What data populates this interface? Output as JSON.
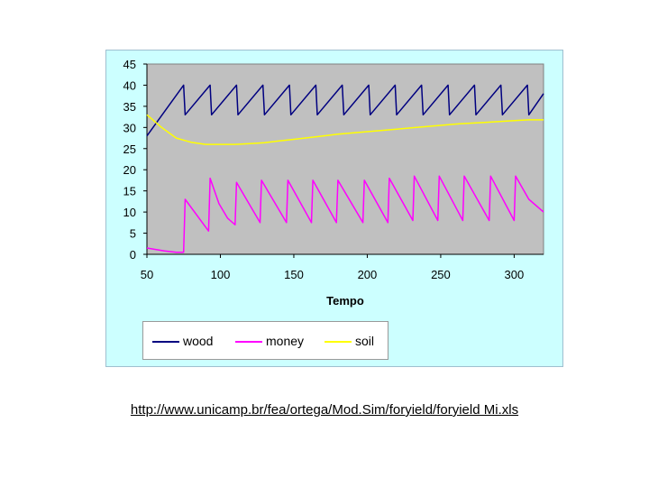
{
  "chart_data": {
    "type": "line",
    "xlabel": "Tempo",
    "ylabel": "",
    "xlim": [
      50,
      320
    ],
    "ylim": [
      0,
      45
    ],
    "x_ticks": [
      50,
      100,
      150,
      200,
      250,
      300
    ],
    "y_ticks": [
      0,
      5,
      10,
      15,
      20,
      25,
      30,
      35,
      40,
      45
    ],
    "grid": false,
    "legend_position": "bottom",
    "plot_background": "#c0c0c0",
    "series": [
      {
        "name": "wood",
        "color": "#000080",
        "points": [
          [
            50,
            28
          ],
          [
            75,
            40
          ],
          [
            76,
            33
          ],
          [
            93,
            40
          ],
          [
            94,
            33
          ],
          [
            111,
            40
          ],
          [
            112,
            33
          ],
          [
            129,
            40
          ],
          [
            130,
            33
          ],
          [
            147,
            40
          ],
          [
            148,
            33
          ],
          [
            165,
            40
          ],
          [
            166,
            33
          ],
          [
            183,
            40
          ],
          [
            184,
            33
          ],
          [
            201,
            40
          ],
          [
            202,
            33
          ],
          [
            219,
            40
          ],
          [
            220,
            33
          ],
          [
            237,
            40
          ],
          [
            238,
            33
          ],
          [
            255,
            40
          ],
          [
            256,
            33
          ],
          [
            273,
            40
          ],
          [
            274,
            33
          ],
          [
            291,
            40
          ],
          [
            292,
            33
          ],
          [
            309,
            40
          ],
          [
            310,
            33
          ],
          [
            320,
            38
          ]
        ]
      },
      {
        "name": "money",
        "color": "#ff00ff",
        "points": [
          [
            50,
            1.5
          ],
          [
            55,
            1.2
          ],
          [
            62,
            0.8
          ],
          [
            70,
            0.5
          ],
          [
            75,
            0.5
          ],
          [
            76,
            13
          ],
          [
            92,
            5.5
          ],
          [
            93,
            18
          ],
          [
            99,
            12
          ],
          [
            105,
            8.5
          ],
          [
            110,
            7
          ],
          [
            111,
            17
          ],
          [
            127,
            7.5
          ],
          [
            128,
            17.5
          ],
          [
            145,
            7.5
          ],
          [
            146,
            17.5
          ],
          [
            162,
            7.5
          ],
          [
            163,
            17.5
          ],
          [
            179,
            7.5
          ],
          [
            180,
            17.5
          ],
          [
            197,
            7.5
          ],
          [
            198,
            17.5
          ],
          [
            214,
            7.5
          ],
          [
            215,
            18
          ],
          [
            231,
            8
          ],
          [
            232,
            18.5
          ],
          [
            248,
            8
          ],
          [
            249,
            18.5
          ],
          [
            265,
            8
          ],
          [
            266,
            18.5
          ],
          [
            283,
            8
          ],
          [
            284,
            18.5
          ],
          [
            300,
            8
          ],
          [
            301,
            18.5
          ],
          [
            310,
            13
          ],
          [
            320,
            10
          ]
        ]
      },
      {
        "name": "soil",
        "color": "#ffff00",
        "points": [
          [
            50,
            33
          ],
          [
            60,
            30
          ],
          [
            70,
            27.5
          ],
          [
            80,
            26.5
          ],
          [
            90,
            26
          ],
          [
            100,
            26
          ],
          [
            110,
            26
          ],
          [
            120,
            26.2
          ],
          [
            130,
            26.4
          ],
          [
            140,
            26.8
          ],
          [
            150,
            27.2
          ],
          [
            160,
            27.6
          ],
          [
            170,
            28
          ],
          [
            180,
            28.4
          ],
          [
            190,
            28.7
          ],
          [
            200,
            29
          ],
          [
            210,
            29.3
          ],
          [
            220,
            29.6
          ],
          [
            230,
            29.9
          ],
          [
            240,
            30.2
          ],
          [
            250,
            30.5
          ],
          [
            260,
            30.8
          ],
          [
            270,
            31
          ],
          [
            280,
            31.2
          ],
          [
            290,
            31.4
          ],
          [
            300,
            31.6
          ],
          [
            310,
            31.8
          ],
          [
            320,
            31.8
          ]
        ]
      }
    ]
  },
  "source_url": "http://www.unicamp.br/fea/ortega/Mod.Sim/foryield/foryield Mi.xls"
}
